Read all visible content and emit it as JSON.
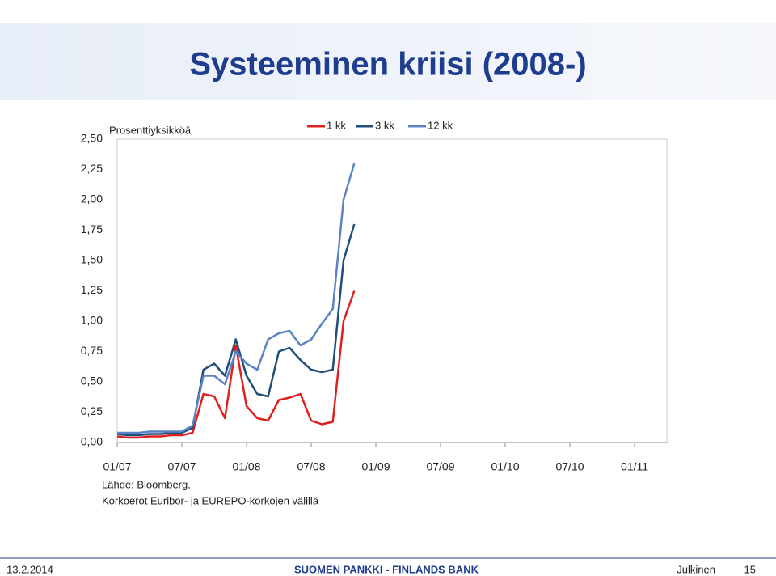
{
  "header": {
    "title": "Systeeminen kriisi (2008-)"
  },
  "chart_data": {
    "type": "line",
    "y_label": "Prosenttiyksikköä",
    "x": [
      "2007-01",
      "2007-02",
      "2007-03",
      "2007-04",
      "2007-05",
      "2007-06",
      "2007-07",
      "2007-08",
      "2007-09",
      "2007-10",
      "2007-11",
      "2007-12",
      "2008-01",
      "2008-02",
      "2008-03",
      "2008-04",
      "2008-05",
      "2008-06",
      "2008-07",
      "2008-08",
      "2008-09",
      "2008-10",
      "2008-11"
    ],
    "series": [
      {
        "name": "1 kk",
        "color": "#e0201f",
        "values": [
          0.05,
          0.04,
          0.04,
          0.05,
          0.05,
          0.06,
          0.06,
          0.08,
          0.4,
          0.38,
          0.2,
          0.8,
          0.3,
          0.2,
          0.18,
          0.35,
          0.37,
          0.4,
          0.18,
          0.15,
          0.17,
          1.0,
          1.25
        ]
      },
      {
        "name": "3 kk",
        "color": "#1f4e79",
        "values": [
          0.07,
          0.06,
          0.06,
          0.07,
          0.07,
          0.08,
          0.08,
          0.12,
          0.6,
          0.65,
          0.55,
          0.85,
          0.55,
          0.4,
          0.38,
          0.75,
          0.78,
          0.68,
          0.6,
          0.58,
          0.6,
          1.5,
          1.8
        ]
      },
      {
        "name": "12 kk",
        "color": "#5b84c4",
        "values": [
          0.08,
          0.08,
          0.08,
          0.09,
          0.09,
          0.09,
          0.09,
          0.14,
          0.55,
          0.55,
          0.48,
          0.75,
          0.65,
          0.6,
          0.85,
          0.9,
          0.92,
          0.8,
          0.85,
          0.98,
          1.1,
          2.0,
          2.3
        ]
      }
    ],
    "xlim": [
      "2007-01",
      "2011-04"
    ],
    "xticks": [
      {
        "value": "2007-01",
        "label": "01/07"
      },
      {
        "value": "2007-07",
        "label": "07/07"
      },
      {
        "value": "2008-01",
        "label": "01/08"
      },
      {
        "value": "2008-07",
        "label": "07/08"
      },
      {
        "value": "2009-01",
        "label": "01/09"
      },
      {
        "value": "2009-07",
        "label": "07/09"
      },
      {
        "value": "2010-01",
        "label": "01/10"
      },
      {
        "value": "2010-07",
        "label": "07/10"
      },
      {
        "value": "2011-01",
        "label": "01/11"
      }
    ],
    "ylim": [
      0,
      2.5
    ],
    "yticks": [
      {
        "value": 0,
        "label": "0,00"
      },
      {
        "value": 0.25,
        "label": "0,25"
      },
      {
        "value": 0.5,
        "label": "0,50"
      },
      {
        "value": 0.75,
        "label": "0,75"
      },
      {
        "value": 1,
        "label": "1,00"
      },
      {
        "value": 1.25,
        "label": "1,25"
      },
      {
        "value": 1.5,
        "label": "1,50"
      },
      {
        "value": 1.75,
        "label": "1,75"
      },
      {
        "value": 2,
        "label": "2,00"
      },
      {
        "value": 2.25,
        "label": "2,25"
      },
      {
        "value": 2.5,
        "label": "2,50"
      }
    ],
    "legend": "top",
    "notes": [
      "Lähde: Bloomberg.",
      "Korkoerot Euribor- ja EUREPO-korkojen välillä"
    ]
  },
  "footer": {
    "date": "13.2.2014",
    "org": "SUOMEN PANKKI - FINLANDS BANK",
    "class": "Julkinen",
    "page": "15"
  }
}
